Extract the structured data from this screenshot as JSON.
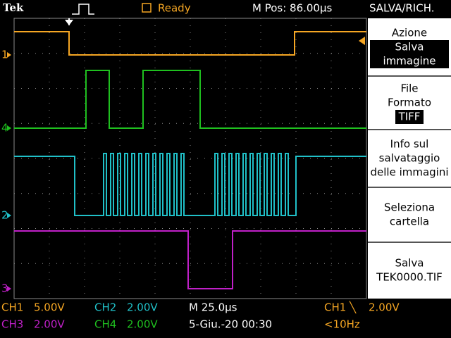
{
  "header": {
    "brand": "Tek",
    "status": "Ready",
    "position": "M Pos: 86.00µs",
    "menu_title": "SALVA/RICH."
  },
  "channel_markers": [
    "1",
    "4",
    "2",
    "3"
  ],
  "menu": [
    {
      "lines": [
        "Azione"
      ],
      "selected": [
        "Salva",
        "immagine"
      ]
    },
    {
      "lines": [
        "File",
        "Formato"
      ],
      "selected": [
        "TIFF"
      ]
    },
    {
      "lines": [
        "Info sul",
        "salvataggio",
        "delle immagini"
      ]
    },
    {
      "lines": [
        "Seleziona",
        "cartella"
      ]
    },
    {
      "lines": [
        "Salva",
        "TEK0000.TIF"
      ]
    }
  ],
  "footer": {
    "ch1": {
      "label": "CH1",
      "scale": "5.00V"
    },
    "ch2": {
      "label": "CH2",
      "scale": "2.00V"
    },
    "timebase": "M 25.0µs",
    "trigger": {
      "label": "CH1 ╲",
      "level": "2.00V"
    },
    "ch3": {
      "label": "CH3",
      "scale": "2.00V"
    },
    "ch4": {
      "label": "CH4",
      "scale": "2.00V"
    },
    "date": "5-Giu.-20 00:30",
    "frequency": "<10Hz"
  }
}
